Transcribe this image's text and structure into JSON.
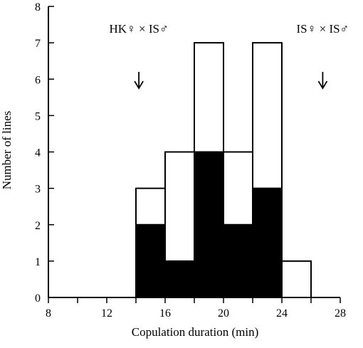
{
  "chart_data": {
    "type": "bar",
    "subtype": "stacked-histogram",
    "xlabel": "Copulation duration (min)",
    "ylabel": "Number of lines",
    "xlim": [
      8,
      28
    ],
    "ylim": [
      0,
      8
    ],
    "x_ticks": [
      8,
      10,
      12,
      14,
      16,
      18,
      20,
      22,
      24,
      26,
      28
    ],
    "x_tick_labels": [
      "8",
      "12",
      "16",
      "20",
      "24",
      "28"
    ],
    "y_ticks": [
      0,
      1,
      2,
      3,
      4,
      5,
      6,
      7,
      8
    ],
    "bin_width": 2,
    "bins": [
      {
        "start": 14,
        "end": 16,
        "filled": 2,
        "total": 3
      },
      {
        "start": 16,
        "end": 18,
        "filled": 1,
        "total": 4
      },
      {
        "start": 18,
        "end": 20,
        "filled": 4,
        "total": 7
      },
      {
        "start": 20,
        "end": 22,
        "filled": 2,
        "total": 4
      },
      {
        "start": 22,
        "end": 24,
        "filled": 3,
        "total": 7
      },
      {
        "start": 24,
        "end": 26,
        "filled": 0,
        "total": 1
      }
    ],
    "colors": {
      "filled": "#000000",
      "open": "#ffffff",
      "stroke": "#000000"
    },
    "annotations": [
      {
        "text": "HK♀ × IS♂",
        "x": 14.2,
        "arrow_from_y": 6.2,
        "arrow_to_y": 5.75
      },
      {
        "text": "IS♀ × IS♂",
        "x": 26.8,
        "arrow_from_y": 6.2,
        "arrow_to_y": 5.75
      }
    ]
  }
}
